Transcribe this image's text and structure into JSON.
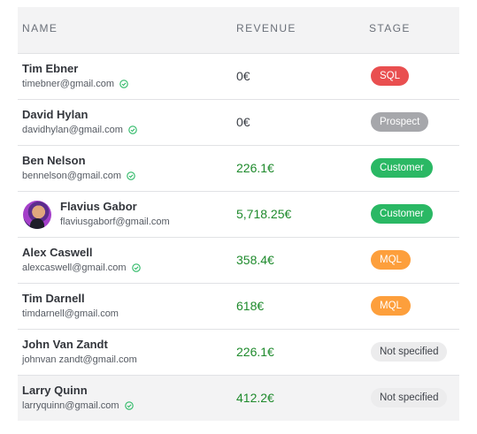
{
  "header": {
    "name": "NAME",
    "revenue": "REVENUE",
    "stage": "STAGE"
  },
  "colors": {
    "sql": "#e94f50",
    "prospect": "#a6a7ab",
    "customer": "#2ab864",
    "mql": "#fd9f3c",
    "not_specified": "#ececed",
    "revenue_positive": "#1e8a2c",
    "verified": "#2ab864"
  },
  "rows": [
    {
      "name": "Tim Ebner",
      "email": "timebner@gmail.com",
      "verified": true,
      "revenue": "0€",
      "stage": "SQL",
      "stage_key": "sql"
    },
    {
      "name": "David Hylan",
      "email": "davidhylan@gmail.com",
      "verified": true,
      "revenue": "0€",
      "stage": "Prospect",
      "stage_key": "prospect"
    },
    {
      "name": "Ben Nelson",
      "email": "bennelson@gmail.com",
      "verified": true,
      "revenue": "226.1€",
      "stage": "Customer",
      "stage_key": "customer"
    },
    {
      "name": "Flavius Gabor",
      "email": "flaviusgaborf@gmail.com",
      "verified": false,
      "avatar": "avatar-icon",
      "revenue": "5,718.25€",
      "stage": "Customer",
      "stage_key": "customer"
    },
    {
      "name": "Alex Caswell",
      "email": "alexcaswell@gmail.com",
      "verified": true,
      "revenue": "358.4€",
      "stage": "MQL",
      "stage_key": "mql"
    },
    {
      "name": "Tim Darnell",
      "email": "timdarnell@gmail.com",
      "verified": false,
      "revenue": "618€",
      "stage": "MQL",
      "stage_key": "mql"
    },
    {
      "name": "John Van Zandt",
      "email": "johnvan zandt@gmail.com",
      "verified": false,
      "revenue": "226.1€",
      "stage": "Not specified",
      "stage_key": "none"
    },
    {
      "name": "Larry Quinn",
      "email": "larryquinn@gmail.com",
      "verified": true,
      "revenue": "412.2€",
      "stage": "Not specified",
      "stage_key": "none"
    }
  ]
}
